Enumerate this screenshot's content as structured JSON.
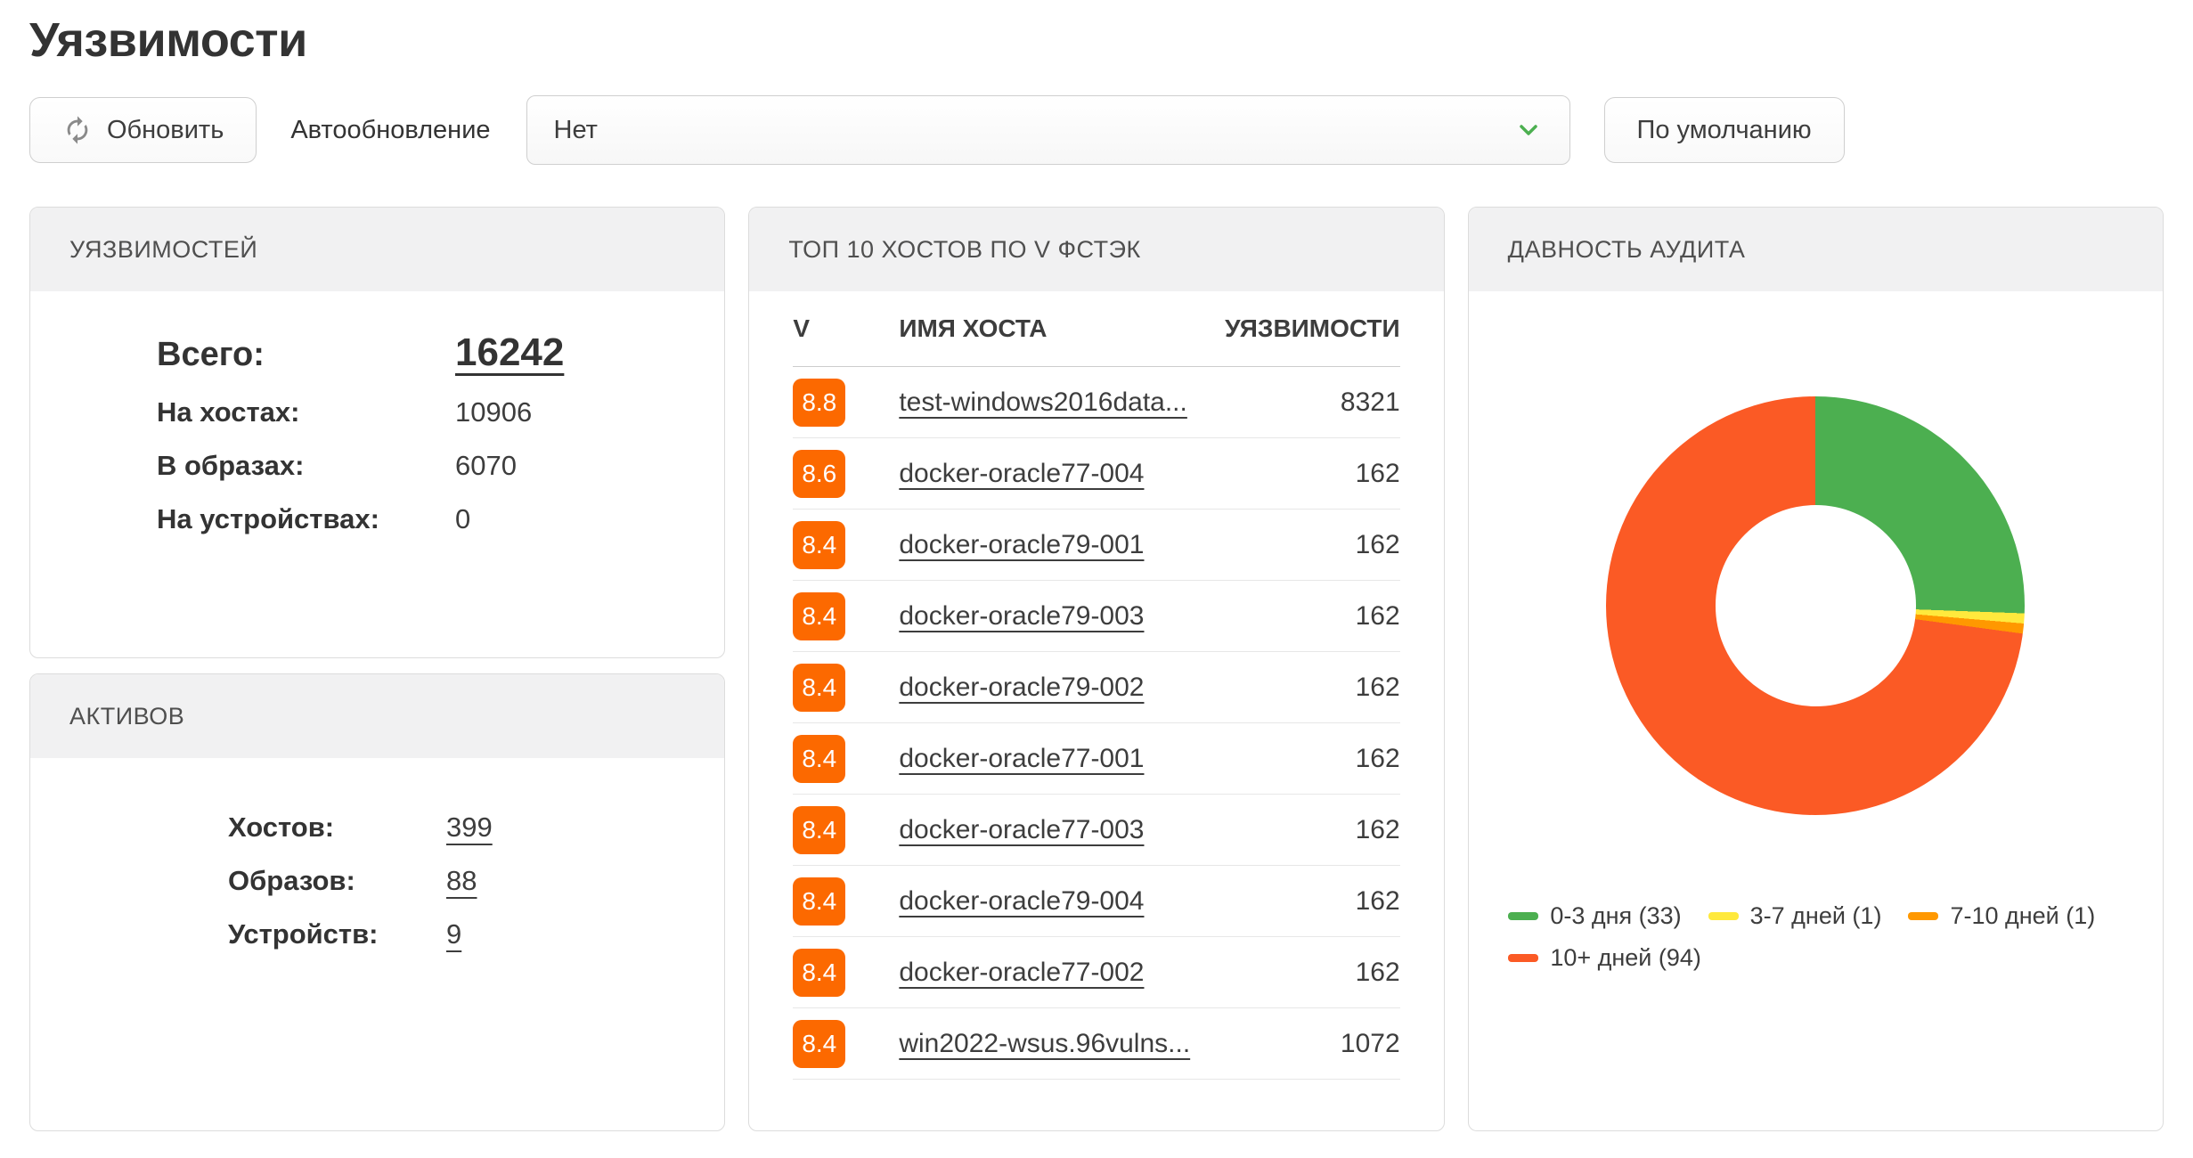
{
  "theme": {
    "text_dark": "#3d3d3d",
    "border": "#cfcfcf",
    "panel_header_bg": "#f1f1f2",
    "badge_orange": "#fc6900",
    "accent_green": "#4caf50"
  },
  "page_title": "Уязвимости",
  "toolbar": {
    "refresh_label": "Обновить",
    "refresh_icon": "refresh-circular-arrows",
    "autorefresh_label": "Автообновление",
    "autorefresh_value": "Нет",
    "autorefresh_chevron_icon": "chevron-down",
    "default_label": "По умолчанию"
  },
  "panels": {
    "vulnerabilities": {
      "title": "УЯЗВИМОСТЕЙ",
      "total": {
        "label": "Всего:",
        "value": "16242"
      },
      "rows": [
        {
          "label": "На хостах:",
          "value": "10906"
        },
        {
          "label": "В образах:",
          "value": "6070"
        },
        {
          "label": "На устройствах:",
          "value": "0"
        }
      ]
    },
    "assets": {
      "title": "АКТИВОВ",
      "rows": [
        {
          "label": "Хостов:",
          "value": "399"
        },
        {
          "label": "Образов:",
          "value": "88"
        },
        {
          "label": "Устройств:",
          "value": "9"
        }
      ]
    },
    "top_hosts": {
      "title": "ТОП 10 ХОСТОВ ПО V ФСТЭК",
      "columns": {
        "score": "V",
        "host": "ИМЯ ХОСТА",
        "vulns": "УЯЗВИМОСТИ"
      },
      "rows": [
        {
          "score": "8.8",
          "host": "test-windows2016data...",
          "vulns": "8321"
        },
        {
          "score": "8.6",
          "host": "docker-oracle77-004",
          "vulns": "162"
        },
        {
          "score": "8.4",
          "host": "docker-oracle79-001",
          "vulns": "162"
        },
        {
          "score": "8.4",
          "host": "docker-oracle79-003",
          "vulns": "162"
        },
        {
          "score": "8.4",
          "host": "docker-oracle79-002",
          "vulns": "162"
        },
        {
          "score": "8.4",
          "host": "docker-oracle77-001",
          "vulns": "162"
        },
        {
          "score": "8.4",
          "host": "docker-oracle77-003",
          "vulns": "162"
        },
        {
          "score": "8.4",
          "host": "docker-oracle79-004",
          "vulns": "162"
        },
        {
          "score": "8.4",
          "host": "docker-oracle77-002",
          "vulns": "162"
        },
        {
          "score": "8.4",
          "host": "win2022-wsus.96vulns...",
          "vulns": "1072"
        }
      ]
    },
    "audit_age": {
      "title": "ДАВНОСТЬ АУДИТА"
    }
  },
  "chart_data": {
    "type": "pie",
    "title": "ДАВНОСТЬ АУДИТА",
    "labels": [
      "0-3 дня (33)",
      "3-7 дней (1)",
      "7-10 дней (1)",
      "10+ дней (94)"
    ],
    "values": [
      33,
      1,
      1,
      94
    ],
    "colors": [
      "#4caf50",
      "#ffe93d",
      "#ff9800",
      "#fb5a25"
    ],
    "donut": true,
    "inner_radius_pct": 48,
    "start_angle_deg": 0,
    "direction": "clockwise",
    "legend_position": "bottom"
  }
}
